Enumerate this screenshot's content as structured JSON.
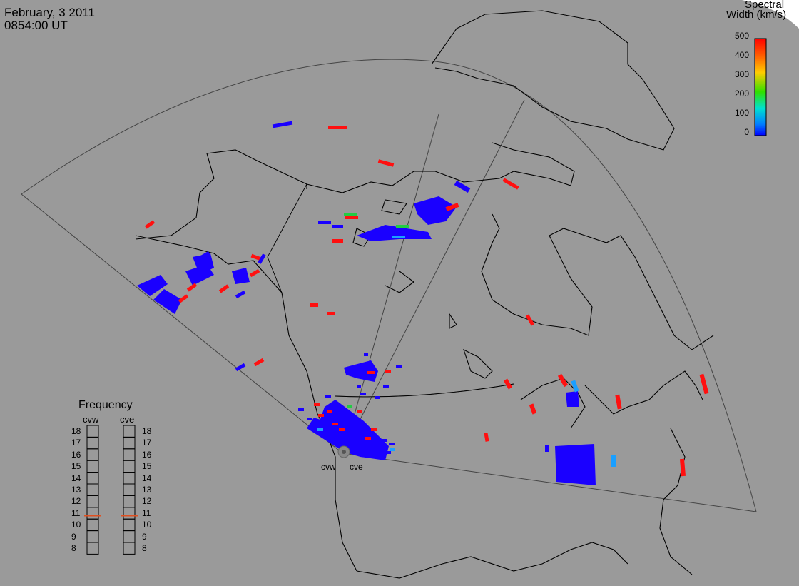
{
  "header": {
    "date": "February, 3 2011",
    "time": "0854:00 UT"
  },
  "colorbar": {
    "title_line1": "Spectral",
    "title_line2": "Width (km/s)",
    "ticks": [
      "500",
      "400",
      "300",
      "200",
      "100",
      "0"
    ],
    "colors": [
      "#ff0000",
      "#ff8000",
      "#ffcc00",
      "#33dd00",
      "#00dddd",
      "#0000ff"
    ]
  },
  "frequency": {
    "title": "Frequency",
    "left_label": "cvw",
    "right_label": "cve",
    "ticks": [
      "18",
      "17",
      "16",
      "15",
      "14",
      "13",
      "12",
      "11",
      "10",
      "9",
      "8"
    ],
    "cvw_value": 10.8,
    "cve_value": 10.8
  },
  "radars": {
    "west": "cvw",
    "east": "cve"
  },
  "colors": {
    "background": "#9a9a9a",
    "low_width": "#1a00ff",
    "high_width": "#ff1010",
    "mid_width": "#22cc44",
    "cyan_width": "#1a9fff",
    "marker": "#e05020"
  }
}
